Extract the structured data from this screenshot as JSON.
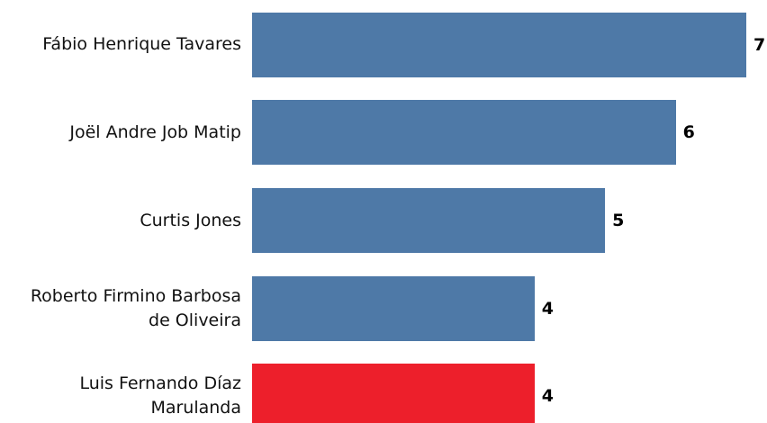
{
  "chart_data": {
    "type": "barh",
    "categories": [
      "Fábio Henrique Tavares",
      "Joël Andre Job Matip",
      "Curtis Jones",
      "Roberto Firmino Barbosa de Oliveira",
      "Luis Fernando Díaz Marulanda"
    ],
    "values": [
      7,
      6,
      5,
      4,
      4
    ],
    "colors": [
      "#4e79a7",
      "#4e79a7",
      "#4e79a7",
      "#4e79a7",
      "#ed1f2b"
    ],
    "xlim": [
      0,
      7
    ]
  }
}
